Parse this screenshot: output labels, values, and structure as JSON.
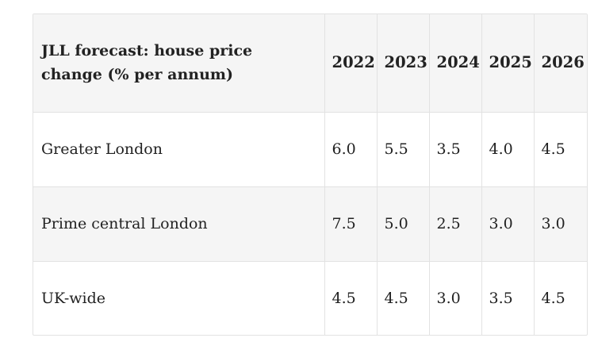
{
  "table": {
    "header": {
      "label": "JLL forecast: house price change (% per annum)",
      "years": [
        "2022",
        "2023",
        "2024",
        "2025",
        "2026"
      ]
    },
    "rows": [
      {
        "region": "Greater London",
        "values": [
          "6.0",
          "5.5",
          "3.5",
          "4.0",
          "4.5"
        ]
      },
      {
        "region": "Prime central London",
        "values": [
          "7.5",
          "5.0",
          "2.5",
          "3.0",
          "3.0"
        ]
      },
      {
        "region": "UK-wide",
        "values": [
          "4.5",
          "4.5",
          "3.0",
          "3.5",
          "4.5"
        ]
      }
    ]
  },
  "colors": {
    "header_background": "#f5f5f5",
    "alt_row_background": "#f5f5f5",
    "border": "#e2e2e2",
    "text": "#222222"
  }
}
